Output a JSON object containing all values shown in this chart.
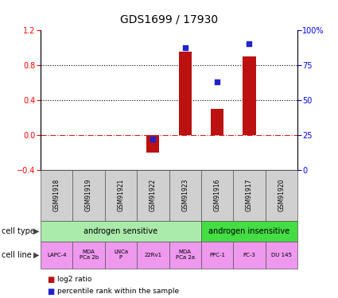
{
  "title": "GDS1699 / 17930",
  "samples": [
    "GSM91918",
    "GSM91919",
    "GSM91921",
    "GSM91922",
    "GSM91923",
    "GSM91916",
    "GSM91917",
    "GSM91920"
  ],
  "log2_ratio": [
    0,
    0,
    0,
    -0.2,
    0.95,
    0.3,
    0.9,
    0
  ],
  "percentile_rank": [
    null,
    null,
    null,
    0.22,
    0.87,
    0.63,
    0.9,
    null
  ],
  "cell_lines": [
    "LAPC-4",
    "MDA\nPCa 2b",
    "LNCa\nP",
    "22Rv1",
    "MDA\nPCa 2a",
    "PPC-1",
    "PC-3",
    "DU 145"
  ],
  "cell_types": [
    {
      "label": "androgen sensitive",
      "start": 0,
      "end": 5,
      "color": "#aaeaaa"
    },
    {
      "label": "androgen insensitive",
      "start": 5,
      "end": 8,
      "color": "#44dd44"
    }
  ],
  "ylim_left": [
    -0.4,
    1.2
  ],
  "ylim_right": [
    0,
    100
  ],
  "yticks_left": [
    -0.4,
    0,
    0.4,
    0.8,
    1.2
  ],
  "yticks_right": [
    0,
    25,
    50,
    75,
    100
  ],
  "yticklabels_right": [
    "0",
    "25",
    "50",
    "75",
    "100%"
  ],
  "bar_color": "#bb1111",
  "dot_color": "#2222cc",
  "zero_line_color": "#cc2222",
  "dotted_line_color": "#000000",
  "bg_color": "#ffffff",
  "sample_box_color": "#d0d0d0",
  "cell_line_color": "#ee99ee",
  "title_fontsize": 10,
  "tick_fontsize": 7,
  "label_fontsize": 7,
  "bar_width": 0.4
}
